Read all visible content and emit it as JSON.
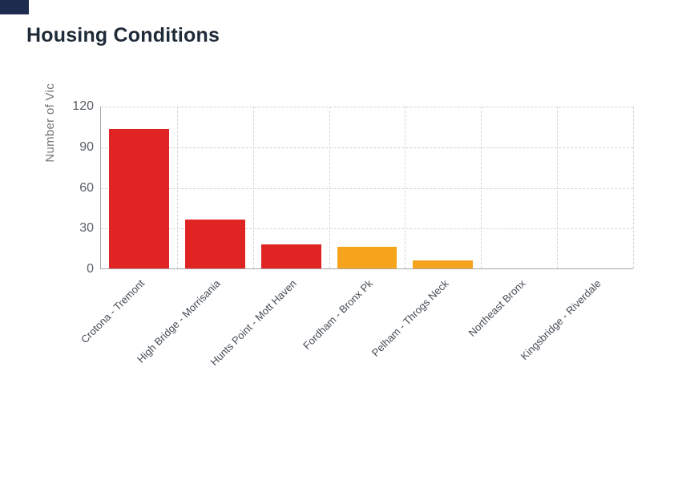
{
  "window": {
    "top_left_accent_color": "#1d2b4e"
  },
  "header": {
    "title": "Housing Conditions"
  },
  "chart_data": {
    "type": "bar",
    "title": "Housing Conditions",
    "xlabel": "",
    "ylabel": "Number of Vic",
    "categories": [
      "Crotona - Tremont",
      "High Bridge - Morrisania",
      "Hunts Point - Mott Haven",
      "Fordham - Bronx Pk",
      "Pelham - Throgs Neck",
      "Northeast Bronx",
      "Kingsbridge - Riverdale"
    ],
    "values": [
      103,
      36,
      18,
      16,
      6,
      0,
      0
    ],
    "bar_colors": [
      "#e02424",
      "#e02424",
      "#e02424",
      "#f5a41c",
      "#f5a41c",
      "#f5a41c",
      "#f5a41c"
    ],
    "ylim": [
      0,
      120
    ],
    "yticks": [
      0,
      30,
      60,
      90,
      120
    ],
    "grid": true,
    "grid_style": "dashed",
    "legend": "none",
    "colors": {
      "high_severity": "#e02424",
      "medium_severity": "#f5a41c",
      "gridline": "#d4d4d4",
      "axis": "#a6a6a6"
    }
  }
}
